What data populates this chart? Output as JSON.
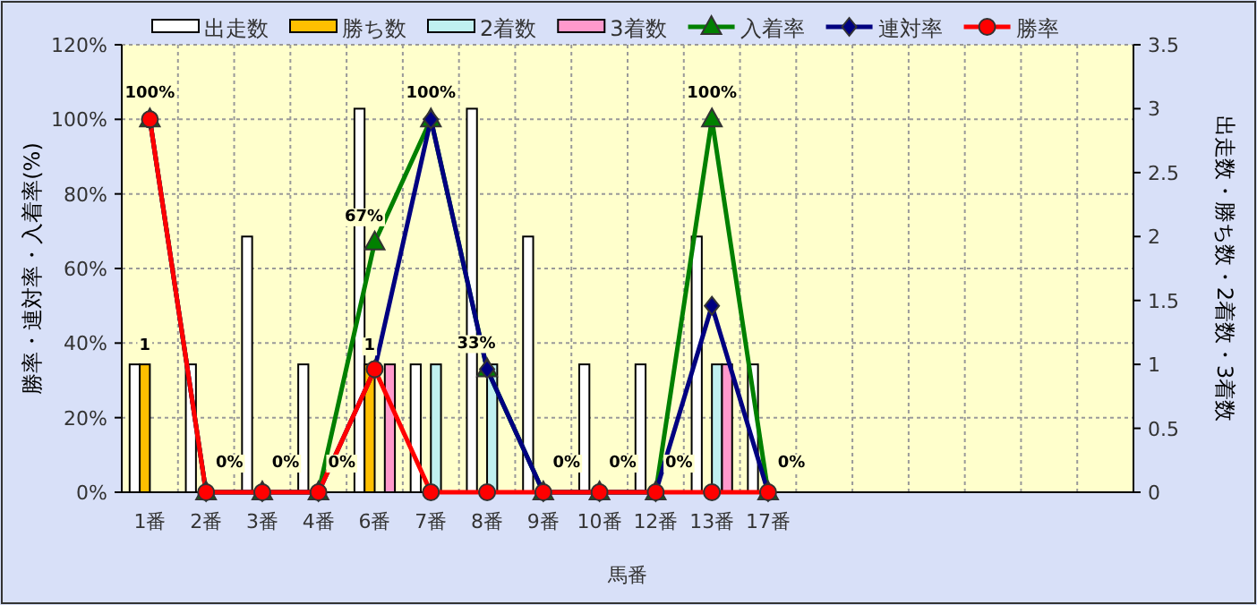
{
  "chart_data": {
    "type": "bar",
    "categories": [
      "1番",
      "2番",
      "3番",
      "4番",
      "6番",
      "7番",
      "8番",
      "9番",
      "10番",
      "12番",
      "13番",
      "17番",
      null,
      null,
      null,
      null,
      null,
      null
    ],
    "xlabel": "馬番",
    "ylabel": "勝率・連対率・入着率(%)",
    "y2label": "出走数・勝ち数・2着数・3着数",
    "ylim": [
      0,
      120
    ],
    "yticks": [
      {
        "value": 0,
        "label": "0%"
      },
      {
        "value": 20,
        "label": "20%"
      },
      {
        "value": 40,
        "label": "40%"
      },
      {
        "value": 60,
        "label": "60%"
      },
      {
        "value": 80,
        "label": "80%"
      },
      {
        "value": 100,
        "label": "100%"
      },
      {
        "value": 120,
        "label": "120%"
      }
    ],
    "y2lim": [
      0,
      3.5
    ],
    "y2ticks": [
      0,
      0.5,
      1,
      1.5,
      2,
      2.5,
      3,
      3.5
    ],
    "grid": true,
    "legend": "top",
    "series": [
      {
        "name": "出走数",
        "axis": "y2",
        "color": "#ffffff",
        "values": [
          1,
          1,
          2,
          1,
          3,
          1,
          3,
          2,
          1,
          1,
          2,
          1,
          null,
          null,
          null,
          null,
          null,
          null
        ]
      },
      {
        "name": "勝ち数",
        "axis": "y2",
        "color": "#ffc000",
        "values": [
          1,
          0,
          0,
          0,
          1,
          0,
          0,
          0,
          0,
          0,
          0,
          0,
          null,
          null,
          null,
          null,
          null,
          null
        ],
        "value_labels": [
          "1",
          null,
          null,
          null,
          "1",
          null,
          null,
          null,
          null,
          null,
          null,
          null,
          null,
          null,
          null,
          null,
          null,
          null
        ]
      },
      {
        "name": "2着数",
        "axis": "y2",
        "color": "#c0f0f0",
        "values": [
          0,
          0,
          0,
          0,
          0,
          1,
          1,
          0,
          0,
          0,
          1,
          0,
          null,
          null,
          null,
          null,
          null,
          null
        ]
      },
      {
        "name": "3着数",
        "axis": "y2",
        "color": "#ff99cc",
        "values": [
          0,
          0,
          0,
          0,
          1,
          0,
          0,
          0,
          0,
          0,
          1,
          0,
          null,
          null,
          null,
          null,
          null,
          null
        ]
      },
      {
        "name": "入着率",
        "type": "line",
        "axis": "y",
        "color": "#008000",
        "marker": "triangle",
        "values": [
          100,
          0,
          0,
          0,
          67,
          100,
          33,
          0,
          0,
          0,
          100,
          0,
          null,
          null,
          null,
          null,
          null,
          null
        ],
        "value_labels": [
          "100%",
          "0%",
          "0%",
          "0%",
          "67%",
          "100%",
          "33%",
          "0%",
          "0%",
          "0%",
          "100%",
          "0%",
          null,
          null,
          null,
          null,
          null,
          null
        ]
      },
      {
        "name": "連対率",
        "type": "line",
        "axis": "y",
        "color": "#000080",
        "marker": "diamond",
        "values": [
          100,
          0,
          0,
          0,
          33,
          100,
          33,
          0,
          0,
          0,
          50,
          0,
          null,
          null,
          null,
          null,
          null,
          null
        ]
      },
      {
        "name": "勝率",
        "type": "line",
        "axis": "y",
        "color": "#ff0000",
        "marker": "circle",
        "values": [
          100,
          0,
          0,
          0,
          33,
          0,
          0,
          0,
          0,
          0,
          0,
          0,
          null,
          null,
          null,
          null,
          null,
          null
        ]
      }
    ]
  }
}
